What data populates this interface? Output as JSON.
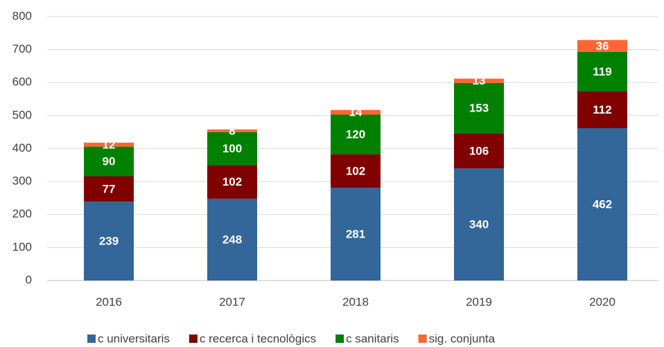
{
  "chart_data": {
    "type": "stacked_bar",
    "categories": [
      "2016",
      "2017",
      "2018",
      "2019",
      "2020"
    ],
    "series": [
      {
        "name": "c universitaris",
        "color": "#336699",
        "values": [
          239,
          248,
          281,
          340,
          462
        ]
      },
      {
        "name": "c recerca i tecnològics",
        "color": "#800000",
        "values": [
          77,
          102,
          102,
          106,
          112
        ]
      },
      {
        "name": "c sanitaris",
        "color": "#008000",
        "values": [
          90,
          100,
          120,
          153,
          119
        ]
      },
      {
        "name": "sig. conjunta",
        "color": "#ff6633",
        "values": [
          12,
          8,
          14,
          13,
          36
        ]
      }
    ],
    "ylim": [
      0,
      800
    ],
    "yticks": [
      0,
      100,
      200,
      300,
      400,
      500,
      600,
      700,
      800
    ],
    "grid": true,
    "legend": "bottom"
  }
}
